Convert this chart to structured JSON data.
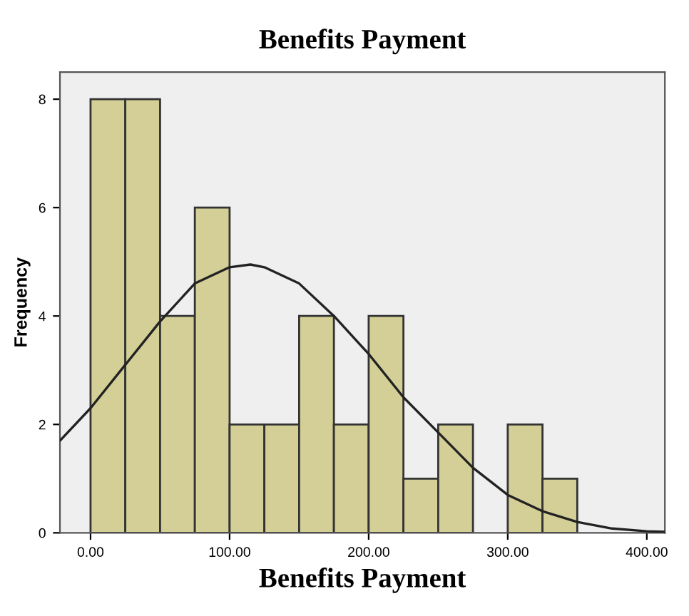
{
  "chart_data": {
    "type": "histogram",
    "title": "Benefits Payment",
    "xlabel": "Benefits Payment",
    "ylabel": "Frequency",
    "bins": [
      0,
      25,
      50,
      75,
      100,
      125,
      150,
      175,
      200,
      225,
      250,
      275,
      300,
      325,
      350
    ],
    "values": [
      8,
      8,
      4,
      6,
      2,
      2,
      4,
      2,
      4,
      1,
      2,
      0,
      2,
      1
    ],
    "color": "#d3cf96",
    "series": [
      {
        "type": "line",
        "color": "#222222",
        "x": [
          -22,
          0,
          25,
          50,
          75,
          100,
          115,
          125,
          150,
          175,
          200,
          225,
          250,
          275,
          300,
          325,
          350,
          375,
          400,
          413
        ],
        "values": [
          1.7,
          2.3,
          3.1,
          3.9,
          4.6,
          4.9,
          4.95,
          4.9,
          4.6,
          4.0,
          3.3,
          2.5,
          1.85,
          1.2,
          0.7,
          0.4,
          0.2,
          0.08,
          0.03,
          0.02
        ]
      }
    ],
    "xlim": [
      -22,
      413
    ],
    "ylim": [
      0,
      8.5
    ],
    "xticks": [
      {
        "value": 0,
        "label": "0.00"
      },
      {
        "value": 100,
        "label": "100.00"
      },
      {
        "value": 200,
        "label": "200.00"
      },
      {
        "value": 300,
        "label": "300.00"
      },
      {
        "value": 400,
        "label": "400.00"
      }
    ],
    "yticks": [
      0,
      2,
      4,
      6,
      8
    ],
    "grid": false
  }
}
